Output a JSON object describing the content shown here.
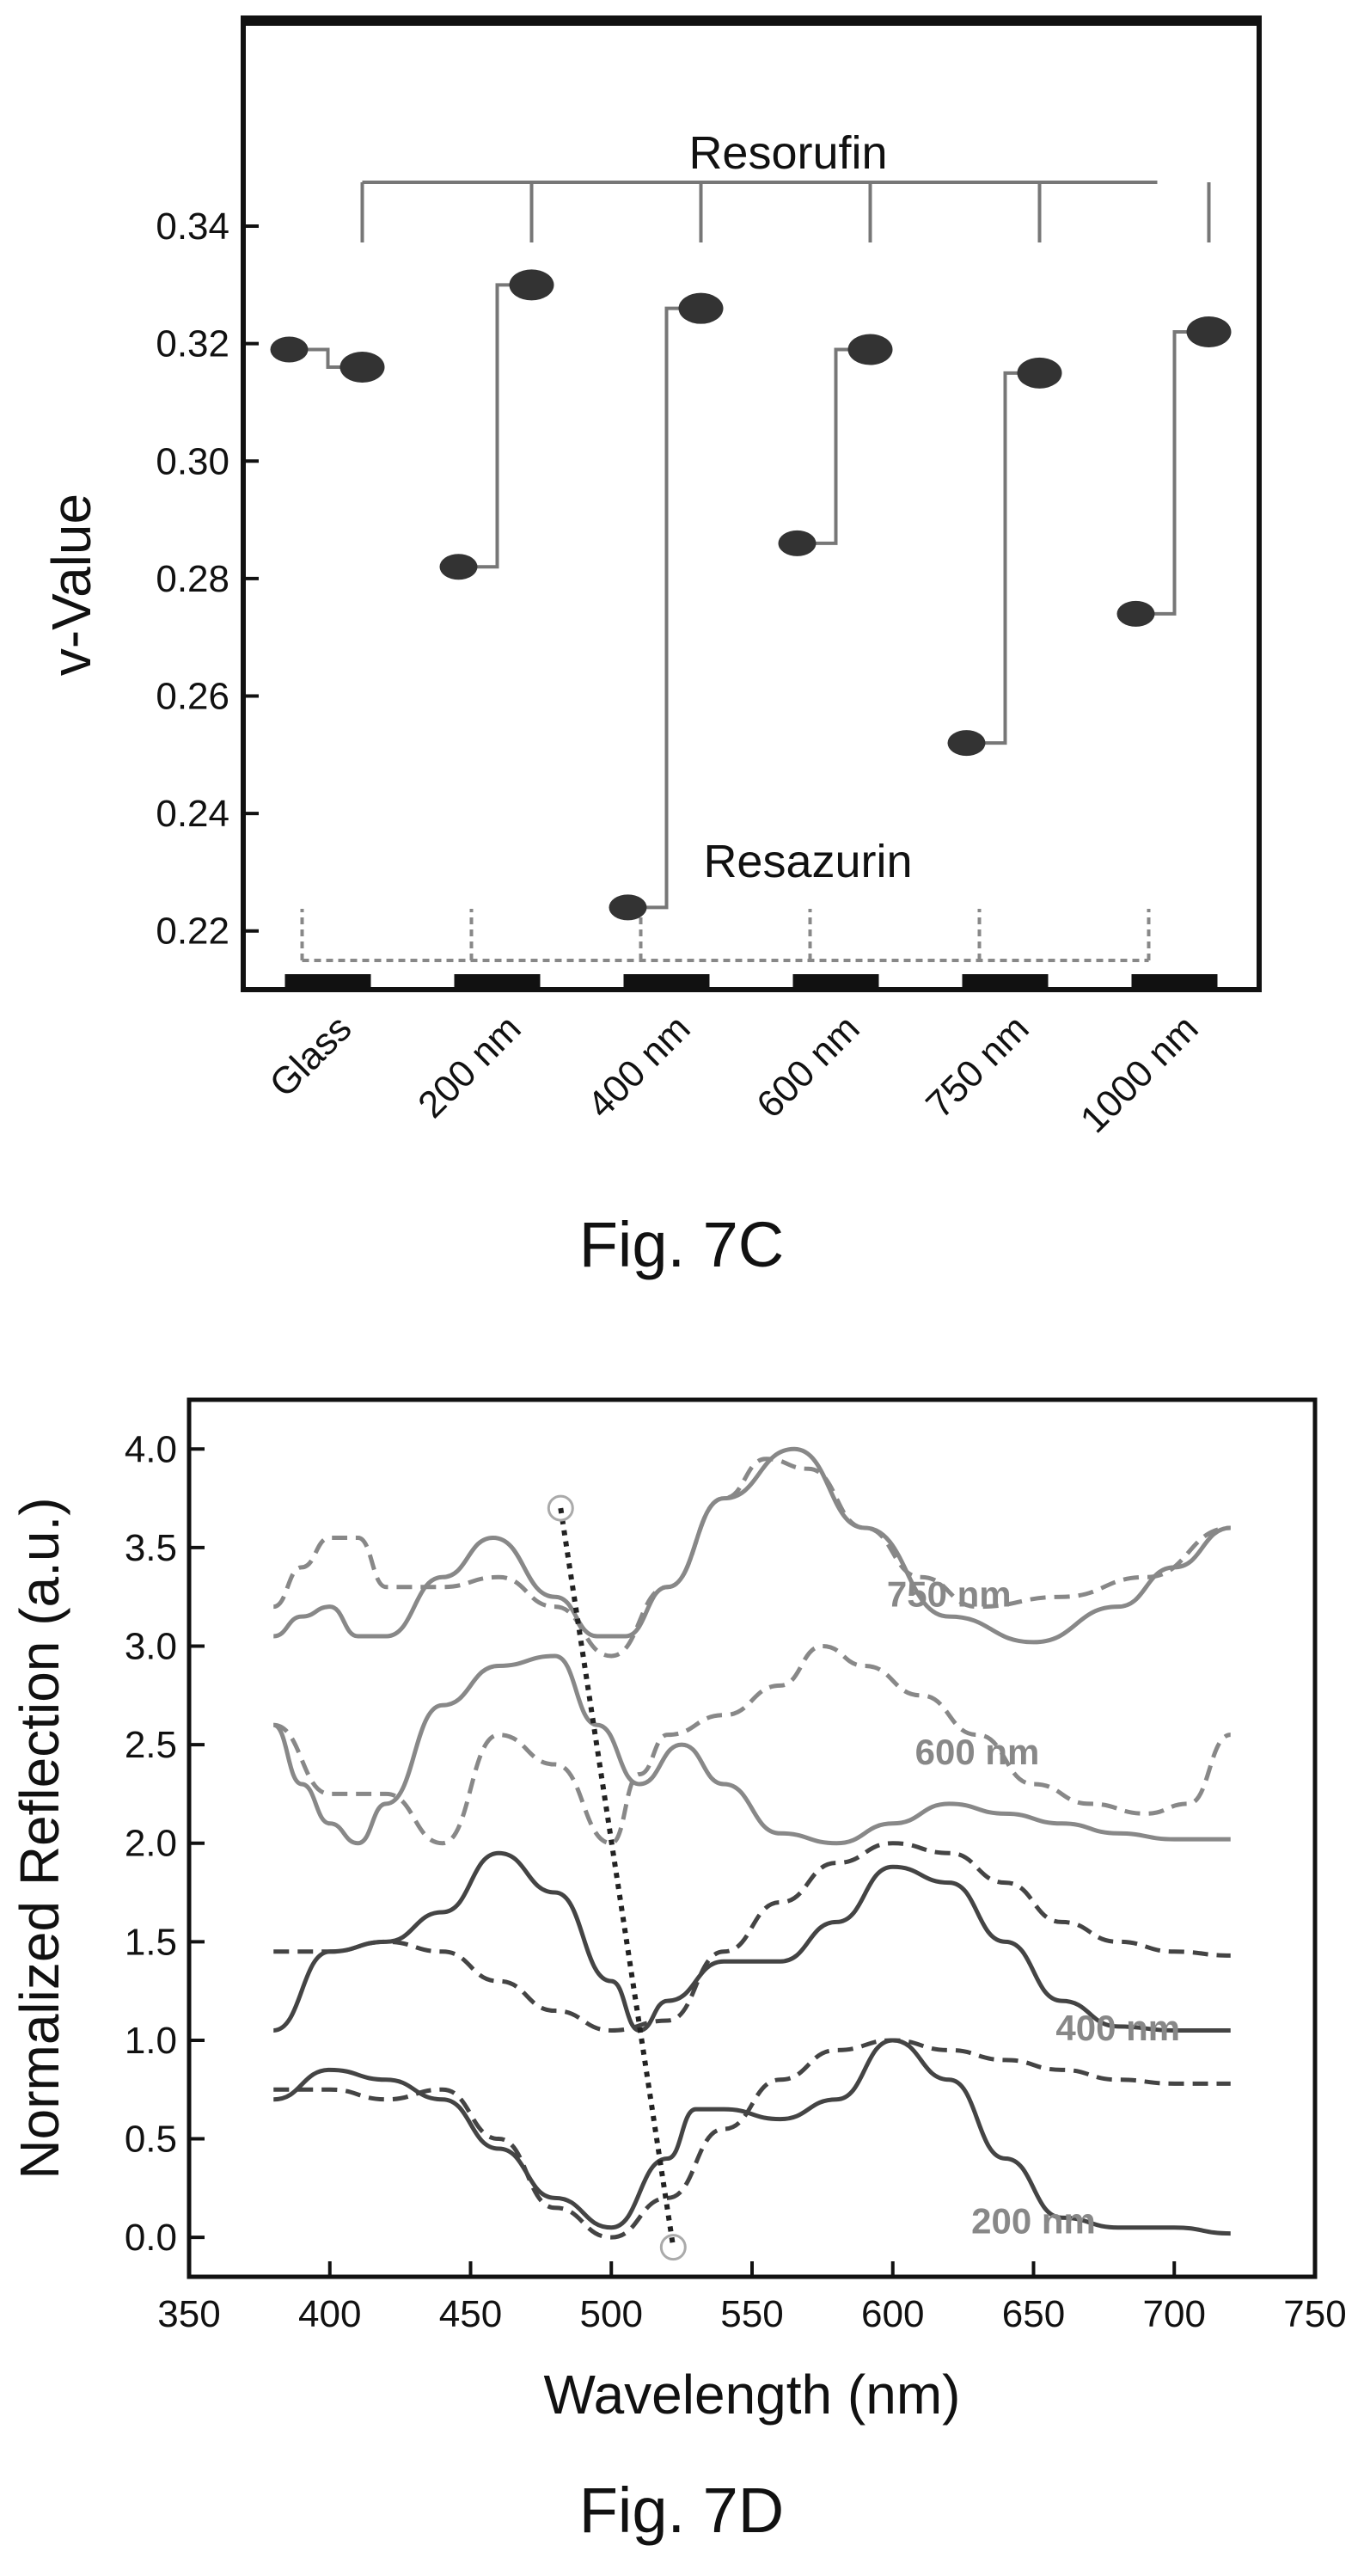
{
  "figures": [
    {
      "caption": "Fig. 7C"
    },
    {
      "caption": "Fig. 7D"
    }
  ],
  "chart_data": [
    {
      "type": "scatter",
      "title": "",
      "xlabel": "",
      "ylabel": "v-Value",
      "categories": [
        "Glass",
        "200 nm",
        "400 nm",
        "600 nm",
        "750 nm",
        "1000 nm"
      ],
      "yticks": [
        "0.22",
        "0.24",
        "0.26",
        "0.28",
        "0.30",
        "0.32",
        "0.34"
      ],
      "ylim": [
        0.21,
        0.375
      ],
      "annotations": [
        "Resorufin",
        "Resazurin"
      ],
      "series": [
        {
          "name": "Resazurin",
          "values": [
            0.319,
            0.282,
            0.224,
            0.286,
            0.252,
            0.274
          ]
        },
        {
          "name": "Resorufin",
          "values": [
            0.316,
            0.33,
            0.326,
            0.319,
            0.315,
            0.322
          ]
        }
      ],
      "grid": false
    },
    {
      "type": "line",
      "title": "",
      "xlabel": "Wavelength (nm)",
      "ylabel": "Normalized Reflection (a.u.)",
      "xticks": [
        "350",
        "400",
        "450",
        "500",
        "550",
        "600",
        "650",
        "700",
        "750"
      ],
      "yticks": [
        "0.0",
        "0.5",
        "1.0",
        "1.5",
        "2.0",
        "2.5",
        "3.0",
        "3.5",
        "4.0"
      ],
      "xlim": [
        350,
        750
      ],
      "ylim": [
        -0.2,
        4.25
      ],
      "grid": false,
      "curve_labels": [
        "200 nm",
        "400 nm",
        "600 nm",
        "750 nm"
      ],
      "series": [
        {
          "label": "200 nm",
          "style": "solid",
          "color": "#444444",
          "x": [
            380,
            400,
            420,
            440,
            460,
            480,
            500,
            520,
            530,
            540,
            560,
            580,
            600,
            620,
            640,
            660,
            680,
            700,
            720
          ],
          "y": [
            0.7,
            0.85,
            0.8,
            0.7,
            0.45,
            0.2,
            0.05,
            0.4,
            0.65,
            0.65,
            0.6,
            0.7,
            1.0,
            0.8,
            0.4,
            0.1,
            0.05,
            0.05,
            0.02
          ]
        },
        {
          "label": "200 nm",
          "style": "dashed",
          "color": "#444444",
          "x": [
            380,
            400,
            420,
            440,
            460,
            480,
            500,
            520,
            540,
            560,
            580,
            600,
            620,
            640,
            660,
            680,
            700,
            720
          ],
          "y": [
            0.75,
            0.75,
            0.7,
            0.75,
            0.5,
            0.15,
            0.0,
            0.2,
            0.55,
            0.8,
            0.95,
            1.0,
            0.95,
            0.9,
            0.85,
            0.8,
            0.78,
            0.78
          ]
        },
        {
          "label": "400 nm",
          "style": "solid",
          "color": "#444444",
          "x": [
            380,
            400,
            420,
            440,
            460,
            480,
            500,
            510,
            520,
            540,
            560,
            580,
            600,
            620,
            640,
            660,
            680,
            700,
            720
          ],
          "y": [
            1.05,
            1.45,
            1.5,
            1.65,
            1.95,
            1.75,
            1.3,
            1.05,
            1.2,
            1.4,
            1.4,
            1.6,
            1.88,
            1.8,
            1.5,
            1.2,
            1.07,
            1.05,
            1.05
          ]
        },
        {
          "label": "400 nm",
          "style": "dashed",
          "color": "#444444",
          "x": [
            380,
            400,
            420,
            440,
            460,
            480,
            500,
            520,
            540,
            560,
            580,
            600,
            620,
            640,
            660,
            680,
            700,
            720
          ],
          "y": [
            1.45,
            1.45,
            1.5,
            1.45,
            1.3,
            1.15,
            1.05,
            1.1,
            1.45,
            1.7,
            1.9,
            2.0,
            1.95,
            1.8,
            1.6,
            1.5,
            1.45,
            1.43
          ]
        },
        {
          "label": "600 nm",
          "style": "solid",
          "color": "#888888",
          "x": [
            380,
            390,
            400,
            410,
            420,
            440,
            460,
            480,
            495,
            510,
            525,
            540,
            560,
            580,
            600,
            620,
            640,
            660,
            680,
            700,
            720
          ],
          "y": [
            2.6,
            2.3,
            2.1,
            2.0,
            2.2,
            2.7,
            2.9,
            2.95,
            2.6,
            2.3,
            2.5,
            2.3,
            2.05,
            2.0,
            2.1,
            2.2,
            2.15,
            2.1,
            2.05,
            2.02,
            2.02
          ]
        },
        {
          "label": "600 nm",
          "style": "dashed",
          "color": "#888888",
          "x": [
            380,
            400,
            420,
            440,
            460,
            480,
            500,
            510,
            520,
            540,
            560,
            575,
            590,
            610,
            630,
            650,
            670,
            690,
            705,
            720
          ],
          "y": [
            2.6,
            2.25,
            2.25,
            2.0,
            2.55,
            2.4,
            2.0,
            2.35,
            2.55,
            2.65,
            2.8,
            3.0,
            2.9,
            2.75,
            2.55,
            2.3,
            2.2,
            2.15,
            2.2,
            2.55
          ]
        },
        {
          "label": "750 nm",
          "style": "solid",
          "color": "#888888",
          "x": [
            380,
            390,
            400,
            410,
            420,
            440,
            458,
            480,
            495,
            505,
            520,
            540,
            565,
            590,
            620,
            650,
            680,
            700,
            720
          ],
          "y": [
            3.05,
            3.15,
            3.2,
            3.05,
            3.05,
            3.35,
            3.55,
            3.25,
            3.05,
            3.05,
            3.3,
            3.75,
            4.0,
            3.6,
            3.15,
            3.02,
            3.2,
            3.4,
            3.6
          ]
        },
        {
          "label": "750 nm",
          "style": "dashed",
          "color": "#888888",
          "x": [
            380,
            390,
            400,
            410,
            420,
            440,
            460,
            480,
            500,
            520,
            540,
            555,
            570,
            590,
            610,
            630,
            660,
            690,
            720
          ],
          "y": [
            3.2,
            3.4,
            3.55,
            3.55,
            3.3,
            3.3,
            3.35,
            3.2,
            2.95,
            3.3,
            3.75,
            3.95,
            3.9,
            3.6,
            3.35,
            3.2,
            3.25,
            3.35,
            3.6
          ]
        },
        {
          "label": "trend",
          "style": "dotted",
          "color": "#222222",
          "x": [
            482,
            522
          ],
          "y": [
            3.7,
            -0.05
          ]
        }
      ]
    }
  ]
}
